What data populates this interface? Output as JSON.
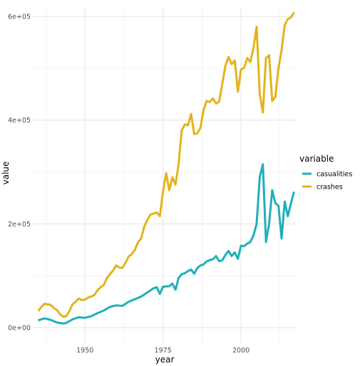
{
  "chart_data": {
    "type": "line",
    "xlabel": "year",
    "ylabel": "value",
    "x_ticks": [
      1950,
      1975,
      2000
    ],
    "x_tick_labels": [
      "1950",
      "1975",
      "2000"
    ],
    "y_ticks": [
      0,
      200000,
      400000,
      600000
    ],
    "y_tick_labels": [
      "0e+00",
      "2e+05",
      "4e+05",
      "6e+05"
    ],
    "xlim": [
      1933.5,
      2017.8
    ],
    "ylim": [
      -30000,
      618000
    ],
    "grid": true,
    "legend": {
      "title": "variable",
      "position": "right"
    },
    "colors": {
      "casualities": "#1eb0ba",
      "crashes": "#e2b41a"
    },
    "series": [
      {
        "name": "casualities",
        "color": "#1eb0ba",
        "points": [
          [
            1935,
            14000
          ],
          [
            1937,
            18000
          ],
          [
            1939,
            15000
          ],
          [
            1941,
            10000
          ],
          [
            1943,
            8000
          ],
          [
            1944,
            9000
          ],
          [
            1946,
            16000
          ],
          [
            1948,
            20000
          ],
          [
            1950,
            19000
          ],
          [
            1952,
            22000
          ],
          [
            1954,
            28000
          ],
          [
            1956,
            33000
          ],
          [
            1958,
            40000
          ],
          [
            1960,
            43000
          ],
          [
            1962,
            42000
          ],
          [
            1964,
            50000
          ],
          [
            1966,
            55000
          ],
          [
            1968,
            60000
          ],
          [
            1970,
            68000
          ],
          [
            1971,
            72000
          ],
          [
            1972,
            76000
          ],
          [
            1973,
            78000
          ],
          [
            1974,
            65000
          ],
          [
            1975,
            79000
          ],
          [
            1977,
            80000
          ],
          [
            1978,
            85000
          ],
          [
            1979,
            73000
          ],
          [
            1980,
            96000
          ],
          [
            1981,
            103000
          ],
          [
            1982,
            105000
          ],
          [
            1983,
            109000
          ],
          [
            1984,
            112000
          ],
          [
            1985,
            104000
          ],
          [
            1986,
            115000
          ],
          [
            1987,
            120000
          ],
          [
            1988,
            122000
          ],
          [
            1989,
            128000
          ],
          [
            1990,
            130000
          ],
          [
            1991,
            132000
          ],
          [
            1992,
            138000
          ],
          [
            1993,
            128000
          ],
          [
            1994,
            130000
          ],
          [
            1995,
            140000
          ],
          [
            1996,
            148000
          ],
          [
            1997,
            138000
          ],
          [
            1998,
            145000
          ],
          [
            1999,
            133000
          ],
          [
            2000,
            158000
          ],
          [
            2001,
            157000
          ],
          [
            2002,
            162000
          ],
          [
            2003,
            165000
          ],
          [
            2004,
            178000
          ],
          [
            2005,
            200000
          ],
          [
            2006,
            290000
          ],
          [
            2007,
            315000
          ],
          [
            2008,
            165000
          ],
          [
            2009,
            200000
          ],
          [
            2010,
            265000
          ],
          [
            2011,
            240000
          ],
          [
            2012,
            235000
          ],
          [
            2013,
            172000
          ],
          [
            2014,
            243000
          ],
          [
            2015,
            215000
          ],
          [
            2016,
            240000
          ],
          [
            2017,
            262000
          ]
        ]
      },
      {
        "name": "crashes",
        "color": "#e2b41a",
        "points": [
          [
            1935,
            32000
          ],
          [
            1936,
            40000
          ],
          [
            1937,
            46000
          ],
          [
            1939,
            44000
          ],
          [
            1940,
            38000
          ],
          [
            1941,
            34000
          ],
          [
            1942,
            26000
          ],
          [
            1943,
            21000
          ],
          [
            1944,
            22000
          ],
          [
            1945,
            32000
          ],
          [
            1946,
            45000
          ],
          [
            1947,
            50000
          ],
          [
            1948,
            56000
          ],
          [
            1949,
            53000
          ],
          [
            1950,
            54000
          ],
          [
            1951,
            58000
          ],
          [
            1952,
            60000
          ],
          [
            1953,
            63000
          ],
          [
            1954,
            72000
          ],
          [
            1955,
            78000
          ],
          [
            1956,
            82000
          ],
          [
            1957,
            95000
          ],
          [
            1958,
            103000
          ],
          [
            1959,
            110000
          ],
          [
            1960,
            120000
          ],
          [
            1961,
            116000
          ],
          [
            1962,
            115000
          ],
          [
            1963,
            125000
          ],
          [
            1964,
            137000
          ],
          [
            1965,
            142000
          ],
          [
            1966,
            150000
          ],
          [
            1967,
            165000
          ],
          [
            1968,
            172000
          ],
          [
            1969,
            195000
          ],
          [
            1970,
            208000
          ],
          [
            1971,
            218000
          ],
          [
            1972,
            220000
          ],
          [
            1973,
            222000
          ],
          [
            1974,
            215000
          ],
          [
            1975,
            262000
          ],
          [
            1976,
            298000
          ],
          [
            1977,
            265000
          ],
          [
            1978,
            290000
          ],
          [
            1979,
            276000
          ],
          [
            1980,
            315000
          ],
          [
            1981,
            380000
          ],
          [
            1982,
            392000
          ],
          [
            1983,
            390000
          ],
          [
            1984,
            412000
          ],
          [
            1985,
            373000
          ],
          [
            1986,
            375000
          ],
          [
            1987,
            385000
          ],
          [
            1988,
            420000
          ],
          [
            1989,
            437000
          ],
          [
            1990,
            435000
          ],
          [
            1991,
            442000
          ],
          [
            1992,
            432000
          ],
          [
            1993,
            436000
          ],
          [
            1994,
            470000
          ],
          [
            1995,
            505000
          ],
          [
            1996,
            522000
          ],
          [
            1997,
            508000
          ],
          [
            1998,
            515000
          ],
          [
            1999,
            455000
          ],
          [
            2000,
            498000
          ],
          [
            2001,
            501000
          ],
          [
            2002,
            520000
          ],
          [
            2003,
            512000
          ],
          [
            2004,
            540000
          ],
          [
            2005,
            580000
          ],
          [
            2006,
            450000
          ],
          [
            2007,
            415000
          ],
          [
            2008,
            520000
          ],
          [
            2009,
            525000
          ],
          [
            2010,
            437000
          ],
          [
            2011,
            445000
          ],
          [
            2012,
            500000
          ],
          [
            2013,
            535000
          ],
          [
            2014,
            583000
          ],
          [
            2015,
            595000
          ],
          [
            2016,
            598000
          ],
          [
            2017,
            608000
          ]
        ]
      }
    ]
  }
}
